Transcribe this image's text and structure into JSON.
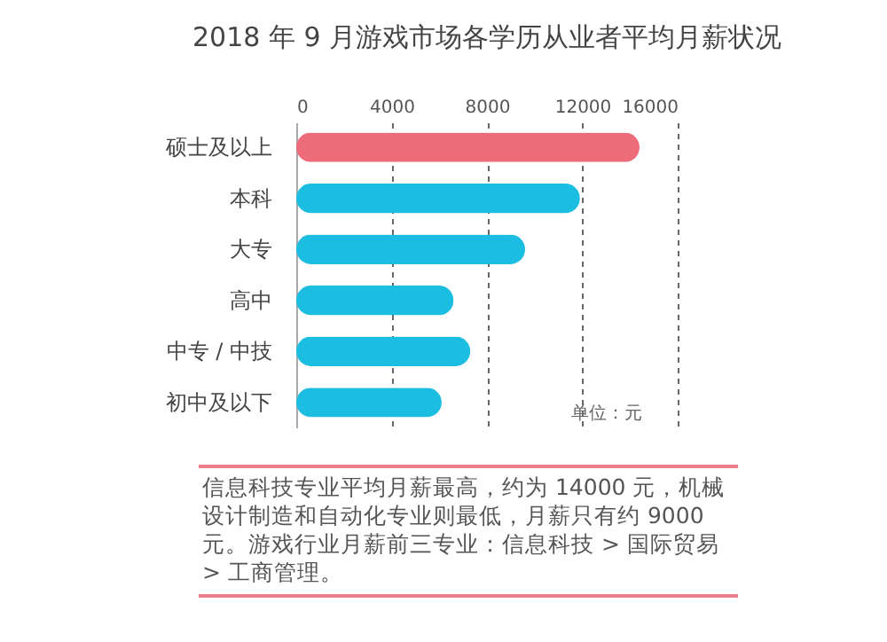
{
  "chart_data": {
    "type": "bar",
    "orientation": "horizontal",
    "title": "2018 年 9 月游戏市场各学历从业者平均月薪状况",
    "categories": [
      "硕士及以上",
      "本科",
      "大专",
      "高中",
      "中专 / 中技",
      "初中及以下"
    ],
    "values": [
      14400,
      11900,
      9600,
      6600,
      7300,
      6100
    ],
    "colors": [
      "#ee6b7a",
      "#1bbde0",
      "#1bbde0",
      "#1bbde0",
      "#1bbde0",
      "#1bbde0"
    ],
    "xlim": [
      0,
      16000
    ],
    "xticks": [
      0,
      4000,
      8000,
      12000,
      16000
    ],
    "grid": "x",
    "annotations": [
      "单位：元",
      "信息科技专业平均月薪最高，约为 14000 元，机械设计制造和自动化专业则最低，月薪只有约 9000 元。游戏行业月薪前三专业：信息科技 > 国际贸易 > 工商管理。"
    ]
  }
}
